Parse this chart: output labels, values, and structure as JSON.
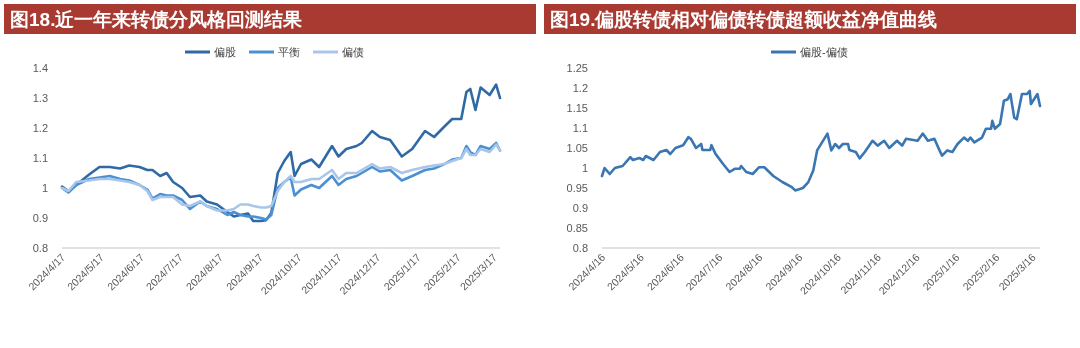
{
  "chart_data": [
    {
      "type": "line",
      "title": "图18.近一年来转债分风格回测结果",
      "legend": "top",
      "x": [
        "2024-04-17",
        "2024-04-22",
        "2024-04-28",
        "2024-05-08",
        "2024-05-16",
        "2024-05-24",
        "2024-06-01",
        "2024-06-08",
        "2024-06-16",
        "2024-06-22",
        "2024-06-26",
        "2024-07-02",
        "2024-07-07",
        "2024-07-12",
        "2024-07-19",
        "2024-07-25",
        "2024-08-02",
        "2024-08-07",
        "2024-08-15",
        "2024-08-23",
        "2024-08-28",
        "2024-09-02",
        "2024-09-08",
        "2024-09-12",
        "2024-09-18",
        "2024-09-22",
        "2024-09-26",
        "2024-10-01",
        "2024-10-06",
        "2024-10-11",
        "2024-10-14",
        "2024-10-19",
        "2024-10-27",
        "2024-11-02",
        "2024-11-12",
        "2024-11-17",
        "2024-11-23",
        "2024-12-01",
        "2024-12-05",
        "2024-12-13",
        "2024-12-19",
        "2024-12-27",
        "2025-01-05",
        "2025-01-13",
        "2025-01-23",
        "2025-01-30",
        "2025-02-07",
        "2025-02-13",
        "2025-02-20",
        "2025-02-24",
        "2025-02-27",
        "2025-03-03",
        "2025-03-07",
        "2025-03-14",
        "2025-03-19",
        "2025-03-22"
      ],
      "series": [
        {
          "name": "偏股",
          "color": "#2f6aa6",
          "values": [
            1.005,
            0.99,
            1.01,
            1.045,
            1.07,
            1.07,
            1.065,
            1.075,
            1.07,
            1.06,
            1.06,
            1.04,
            1.05,
            1.02,
            1.0,
            0.97,
            0.975,
            0.955,
            0.945,
            0.92,
            0.905,
            0.91,
            0.915,
            0.89,
            0.89,
            0.893,
            0.917,
            1.05,
            1.09,
            1.12,
            1.04,
            1.08,
            1.095,
            1.07,
            1.14,
            1.105,
            1.13,
            1.14,
            1.15,
            1.19,
            1.17,
            1.16,
            1.105,
            1.13,
            1.19,
            1.17,
            1.205,
            1.23,
            1.23,
            1.32,
            1.33,
            1.26,
            1.335,
            1.31,
            1.345,
            1.3
          ]
        },
        {
          "name": "平衡",
          "color": "#4b90d2",
          "values": [
            1.0,
            0.985,
            1.01,
            1.03,
            1.035,
            1.04,
            1.03,
            1.025,
            1.01,
            0.995,
            0.965,
            0.98,
            0.975,
            0.975,
            0.96,
            0.93,
            0.955,
            0.94,
            0.93,
            0.91,
            0.92,
            0.91,
            0.905,
            0.905,
            0.9,
            0.895,
            0.91,
            1.0,
            1.02,
            1.035,
            0.975,
            0.995,
            1.01,
            1.0,
            1.04,
            1.01,
            1.03,
            1.04,
            1.05,
            1.07,
            1.055,
            1.06,
            1.025,
            1.04,
            1.06,
            1.065,
            1.08,
            1.095,
            1.1,
            1.14,
            1.12,
            1.11,
            1.14,
            1.13,
            1.15,
            1.125
          ]
        },
        {
          "name": "偏债",
          "color": "#a8c6ea",
          "values": [
            1.0,
            0.99,
            1.02,
            1.025,
            1.03,
            1.03,
            1.025,
            1.02,
            1.01,
            0.99,
            0.96,
            0.97,
            0.97,
            0.97,
            0.945,
            0.94,
            0.955,
            0.94,
            0.925,
            0.925,
            0.93,
            0.945,
            0.945,
            0.94,
            0.935,
            0.935,
            0.94,
            0.99,
            1.02,
            1.04,
            1.02,
            1.02,
            1.03,
            1.03,
            1.06,
            1.03,
            1.05,
            1.05,
            1.06,
            1.08,
            1.065,
            1.07,
            1.05,
            1.06,
            1.07,
            1.075,
            1.08,
            1.09,
            1.1,
            1.13,
            1.11,
            1.11,
            1.13,
            1.12,
            1.145,
            1.125
          ]
        }
      ],
      "xlim": [
        "2024-04-17",
        "2025-03-22"
      ],
      "xticks": [
        {
          "value": "2024-04-17",
          "label": "2024/4/17"
        },
        {
          "value": "2024-05-17",
          "label": "2024/5/17"
        },
        {
          "value": "2024-06-17",
          "label": "2024/6/17"
        },
        {
          "value": "2024-07-17",
          "label": "2024/7/17"
        },
        {
          "value": "2024-08-17",
          "label": "2024/8/17"
        },
        {
          "value": "2024-09-17",
          "label": "2024/9/17"
        },
        {
          "value": "2024-10-17",
          "label": "2024/10/17"
        },
        {
          "value": "2024-11-17",
          "label": "2024/11/17"
        },
        {
          "value": "2024-12-17",
          "label": "2024/12/17"
        },
        {
          "value": "2025-01-17",
          "label": "2025/1/17"
        },
        {
          "value": "2025-02-17",
          "label": "2025/2/17"
        },
        {
          "value": "2025-03-17",
          "label": "2025/3/17"
        }
      ],
      "ylim": [
        0.8,
        1.4
      ],
      "yticks": [
        0.8,
        0.9,
        1,
        1.1,
        1.2,
        1.3,
        1.4
      ]
    },
    {
      "type": "line",
      "title": "图19.偏股转债相对偏债转债超额收益净值曲线",
      "legend": "top",
      "x": [
        "2024-04-16",
        "2024-04-18",
        "2024-04-22",
        "2024-04-26",
        "2024-05-02",
        "2024-05-08",
        "2024-05-10",
        "2024-05-15",
        "2024-05-18",
        "2024-05-20",
        "2024-05-26",
        "2024-05-31",
        "2024-06-05",
        "2024-06-08",
        "2024-06-12",
        "2024-06-18",
        "2024-06-22",
        "2024-06-24",
        "2024-06-28",
        "2024-07-02",
        "2024-07-03",
        "2024-07-09",
        "2024-07-10",
        "2024-07-13",
        "2024-07-19",
        "2024-07-24",
        "2024-07-28",
        "2024-08-01",
        "2024-08-02",
        "2024-08-06",
        "2024-08-11",
        "2024-08-16",
        "2024-08-20",
        "2024-08-27",
        "2024-09-03",
        "2024-09-10",
        "2024-09-13",
        "2024-09-19",
        "2024-09-23",
        "2024-09-27",
        "2024-09-30",
        "2024-10-08",
        "2024-10-11",
        "2024-10-14",
        "2024-10-17",
        "2024-10-20",
        "2024-10-24",
        "2024-10-25",
        "2024-10-30",
        "2024-11-02",
        "2024-11-06",
        "2024-11-12",
        "2024-11-16",
        "2024-11-21",
        "2024-11-25",
        "2024-12-01",
        "2024-12-05",
        "2024-12-08",
        "2024-12-17",
        "2024-12-21",
        "2024-12-25",
        "2024-12-30",
        "2025-01-03",
        "2025-01-05",
        "2025-01-09",
        "2025-01-13",
        "2025-01-17",
        "2025-01-22",
        "2025-01-25",
        "2025-01-27",
        "2025-01-30",
        "2025-02-05",
        "2025-02-08",
        "2025-02-12",
        "2025-02-13",
        "2025-02-15",
        "2025-02-19",
        "2025-02-22",
        "2025-02-25",
        "2025-02-27",
        "2025-03-02",
        "2025-03-04",
        "2025-03-08",
        "2025-03-12",
        "2025-03-14",
        "2025-03-15",
        "2025-03-18",
        "2025-03-20",
        "2025-03-22"
      ],
      "series": [
        {
          "name": "偏股-偏债",
          "color": "#3a76b2",
          "values": [
            0.98,
            1.0,
            0.985,
            1.0,
            1.005,
            1.027,
            1.02,
            1.025,
            1.02,
            1.03,
            1.02,
            1.04,
            1.045,
            1.035,
            1.05,
            1.057,
            1.077,
            1.073,
            1.05,
            1.06,
            1.045,
            1.045,
            1.057,
            1.036,
            1.01,
            0.99,
            0.998,
            0.998,
            1.005,
            0.99,
            0.985,
            1.002,
            1.002,
            0.98,
            0.965,
            0.953,
            0.944,
            0.95,
            0.964,
            0.994,
            1.044,
            1.086,
            1.044,
            1.06,
            1.05,
            1.06,
            1.06,
            1.045,
            1.04,
            1.024,
            1.04,
            1.068,
            1.056,
            1.068,
            1.05,
            1.068,
            1.056,
            1.073,
            1.068,
            1.086,
            1.068,
            1.073,
            1.044,
            1.031,
            1.044,
            1.04,
            1.06,
            1.076,
            1.068,
            1.076,
            1.064,
            1.076,
            1.098,
            1.098,
            1.118,
            1.098,
            1.11,
            1.168,
            1.172,
            1.185,
            1.126,
            1.122,
            1.185,
            1.185,
            1.193,
            1.16,
            1.175,
            1.185,
            1.155
          ]
        }
      ],
      "xlim": [
        "2024-04-16",
        "2025-03-22"
      ],
      "xticks": [
        {
          "value": "2024-04-16",
          "label": "2024/4/16"
        },
        {
          "value": "2024-05-16",
          "label": "2024/5/16"
        },
        {
          "value": "2024-06-16",
          "label": "2024/6/16"
        },
        {
          "value": "2024-07-16",
          "label": "2024/7/16"
        },
        {
          "value": "2024-08-16",
          "label": "2024/8/16"
        },
        {
          "value": "2024-09-16",
          "label": "2024/9/16"
        },
        {
          "value": "2024-10-16",
          "label": "2024/10/16"
        },
        {
          "value": "2024-11-16",
          "label": "2024/11/16"
        },
        {
          "value": "2024-12-16",
          "label": "2024/12/16"
        },
        {
          "value": "2025-01-16",
          "label": "2025/1/16"
        },
        {
          "value": "2025-02-16",
          "label": "2025/2/16"
        },
        {
          "value": "2025-03-16",
          "label": "2025/3/16"
        }
      ],
      "ylim": [
        0.8,
        1.25
      ],
      "yticks": [
        0.8,
        0.85,
        0.9,
        0.95,
        1,
        1.05,
        1.1,
        1.15,
        1.2,
        1.25
      ]
    }
  ]
}
